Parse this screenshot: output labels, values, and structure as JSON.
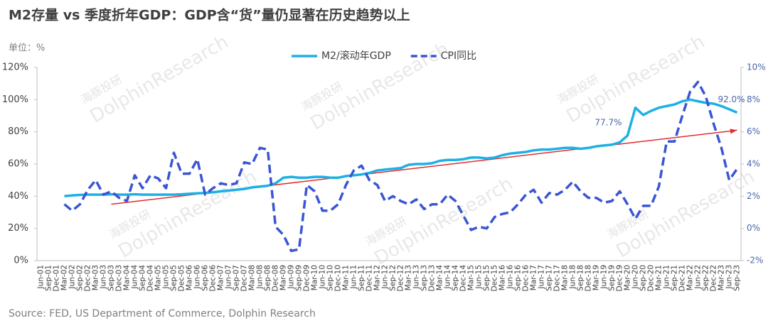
{
  "chart_data": {
    "type": "line",
    "title": "M2存量 vs 季度折年GDP：GDP含“货”量仍显著在历史趋势以上",
    "unit_label": "单位：%",
    "source": "Source: FED, US Department of Commerce, Dolphin Research",
    "watermark": [
      "海豚投研",
      "DolphinResearch"
    ],
    "categories": [
      "Jun-01",
      "Sep-01",
      "Dec-01",
      "Mar-02",
      "Jun-02",
      "Sep-02",
      "Dec-02",
      "Mar-03",
      "Jun-03",
      "Sep-03",
      "Dec-03",
      "Mar-04",
      "Jun-04",
      "Sep-04",
      "Dec-04",
      "Mar-05",
      "Jun-05",
      "Sep-05",
      "Dec-05",
      "Mar-06",
      "Jun-06",
      "Sep-06",
      "Dec-06",
      "Mar-07",
      "Jun-07",
      "Sep-07",
      "Dec-07",
      "Mar-08",
      "Jun-08",
      "Sep-08",
      "Dec-08",
      "Mar-09",
      "Jun-09",
      "Sep-09",
      "Dec-09",
      "Mar-10",
      "Jun-10",
      "Sep-10",
      "Dec-10",
      "Mar-11",
      "Jun-11",
      "Sep-11",
      "Dec-11",
      "Mar-12",
      "Jun-12",
      "Sep-12",
      "Dec-12",
      "Mar-13",
      "Jun-13",
      "Sep-13",
      "Dec-13",
      "Mar-14",
      "Jun-14",
      "Sep-14",
      "Dec-14",
      "Mar-15",
      "Jun-15",
      "Sep-15",
      "Dec-15",
      "Mar-16",
      "Jun-16",
      "Sep-16",
      "Dec-16",
      "Mar-17",
      "Jun-17",
      "Sep-17",
      "Dec-17",
      "Mar-18",
      "Jun-18",
      "Sep-18",
      "Dec-18",
      "Mar-19",
      "Jun-19",
      "Sep-19",
      "Dec-19",
      "Mar-20",
      "Jun-20",
      "Sep-20",
      "Dec-20",
      "Mar-21",
      "Jun-21",
      "Sep-21",
      "Dec-21",
      "Mar-22",
      "Jun-22",
      "Sep-22",
      "Dec-22",
      "Mar-23",
      "Jun-23",
      "Sep-23"
    ],
    "series": [
      {
        "name": "M2/滚动年GDP",
        "color": "#1cb0e6",
        "axis": "y",
        "values": [
          null,
          null,
          null,
          40,
          40.5,
          40.8,
          41,
          41,
          41,
          41.2,
          41,
          41,
          41.2,
          41,
          41,
          41,
          41,
          41,
          41.2,
          41.5,
          41.8,
          42,
          42.5,
          43,
          43.5,
          44,
          44.5,
          45.5,
          46,
          46.5,
          48,
          51.5,
          52,
          51.5,
          51.5,
          52,
          52,
          51.5,
          51.5,
          52.5,
          53,
          53.5,
          54.5,
          56,
          56.5,
          57,
          57.5,
          59.5,
          60,
          60,
          60.5,
          62,
          62.5,
          62.5,
          63,
          64,
          64,
          63.5,
          64,
          65.5,
          66.5,
          67,
          67.5,
          68.5,
          69,
          69,
          69.5,
          70,
          70,
          69.5,
          70,
          71,
          71.5,
          72,
          73.5,
          77.7,
          95,
          90.5,
          93,
          95,
          96,
          97,
          99,
          100,
          99,
          98,
          97.5,
          96,
          94,
          92.0
        ],
        "value_labels": [
          null,
          null,
          null,
          null,
          null,
          null,
          null,
          null,
          null,
          null,
          null,
          null,
          null,
          null,
          null,
          null,
          null,
          null,
          null,
          null,
          null,
          null,
          null,
          null,
          null,
          null,
          null,
          null,
          null,
          null,
          null,
          null,
          null,
          null,
          null,
          null,
          null,
          null,
          null,
          null,
          null,
          null,
          null,
          null,
          null,
          null,
          null,
          null,
          null,
          null,
          null,
          null,
          null,
          null,
          null,
          null,
          null,
          null,
          null,
          null,
          null,
          null,
          null,
          null,
          null,
          null,
          null,
          null,
          null,
          null,
          null,
          null,
          null,
          null,
          null,
          "77.7%",
          null,
          null,
          null,
          null,
          null,
          null,
          null,
          null,
          null,
          null,
          null,
          null,
          null,
          "92.0%"
        ]
      },
      {
        "name": "CPI同比",
        "color": "#3a55d4",
        "axis": "y2",
        "dashed": true,
        "values": [
          null,
          null,
          null,
          1.5,
          1.1,
          1.5,
          2.4,
          3.0,
          2.1,
          2.3,
          1.9,
          1.7,
          3.3,
          2.5,
          3.3,
          3.1,
          2.5,
          4.7,
          3.4,
          3.4,
          4.3,
          2.1,
          2.5,
          2.8,
          2.7,
          2.8,
          4.1,
          4.0,
          5.0,
          4.9,
          0.1,
          -0.4,
          -1.4,
          -1.3,
          2.7,
          2.3,
          1.1,
          1.1,
          1.5,
          2.7,
          3.6,
          3.9,
          3.0,
          2.7,
          1.7,
          2.0,
          1.7,
          1.5,
          1.8,
          1.2,
          1.5,
          1.5,
          2.1,
          1.7,
          0.8,
          -0.1,
          0.1,
          0.0,
          0.7,
          0.9,
          1.0,
          1.5,
          2.1,
          2.4,
          1.6,
          2.2,
          2.1,
          2.4,
          2.9,
          2.3,
          1.9,
          1.9,
          1.6,
          1.7,
          2.3,
          1.5,
          0.6,
          1.4,
          1.4,
          2.6,
          5.4,
          5.4,
          7.0,
          8.5,
          9.1,
          8.2,
          6.5,
          5.0,
          3.0,
          3.7
        ]
      }
    ],
    "trendline": {
      "color": "#e52b2b",
      "from": {
        "x": 9,
        "y": 35
      },
      "to": {
        "x": 89,
        "y": 81
      }
    },
    "ylim": [
      0,
      120
    ],
    "yticks": [
      {
        "value": 0,
        "label": "0%"
      },
      {
        "value": 20,
        "label": "20%"
      },
      {
        "value": 40,
        "label": "40%"
      },
      {
        "value": 60,
        "label": "60%"
      },
      {
        "value": 80,
        "label": "80%"
      },
      {
        "value": 100,
        "label": "100%"
      },
      {
        "value": 120,
        "label": "120%"
      }
    ],
    "y2lim": [
      -2,
      10
    ],
    "y2ticks": [
      {
        "value": -2,
        "label": "-2%"
      },
      {
        "value": 0,
        "label": "0%"
      },
      {
        "value": 2,
        "label": "2%"
      },
      {
        "value": 4,
        "label": "4%"
      },
      {
        "value": 6,
        "label": "6%"
      },
      {
        "value": 8,
        "label": "8%"
      },
      {
        "value": 10,
        "label": "10%"
      }
    ],
    "grid": false,
    "legend": "top"
  }
}
